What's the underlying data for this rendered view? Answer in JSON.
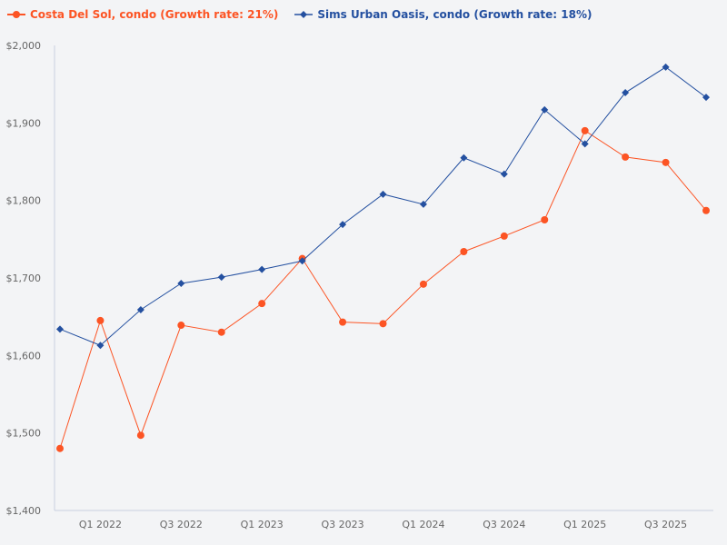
{
  "chart_data": {
    "type": "line",
    "title": "",
    "xlabel": "",
    "ylabel": "",
    "ylim": [
      1400,
      2000
    ],
    "yticks": [
      1400,
      1500,
      1600,
      1700,
      1800,
      1900,
      2000
    ],
    "ytick_labels": [
      "$1,400",
      "$1,500",
      "$1,600",
      "$1,700",
      "$1,800",
      "$1,900",
      "$2,000"
    ],
    "x": [
      "Q4 2021",
      "Q1 2022",
      "Q2 2022",
      "Q3 2022",
      "Q4 2022",
      "Q1 2023",
      "Q2 2023",
      "Q3 2023",
      "Q4 2023",
      "Q1 2024",
      "Q2 2024",
      "Q3 2024",
      "Q4 2024",
      "Q1 2025",
      "Q2 2025",
      "Q3 2025",
      "Q4 2025"
    ],
    "xtick_labels": [
      {
        "i": 1,
        "label": "Q1 2022"
      },
      {
        "i": 3,
        "label": "Q3 2022"
      },
      {
        "i": 5,
        "label": "Q1 2023"
      },
      {
        "i": 7,
        "label": "Q3 2023"
      },
      {
        "i": 9,
        "label": "Q1 2024"
      },
      {
        "i": 11,
        "label": "Q3 2024"
      },
      {
        "i": 13,
        "label": "Q1 2025"
      },
      {
        "i": 15,
        "label": "Q3 2025"
      }
    ],
    "legend_position": "top-left",
    "grid": false,
    "series": [
      {
        "name": "Costa Del Sol, condo (Growth rate: 21%)",
        "color": "#fc5424",
        "marker": "circle",
        "values": [
          1480,
          1645,
          1497,
          1639,
          1630,
          1667,
          1725,
          1643,
          1641,
          1692,
          1734,
          1754,
          1775,
          1890,
          1856,
          1849,
          1787
        ]
      },
      {
        "name": "Sims Urban Oasis, condo (Growth rate: 18%)",
        "color": "#2450a0",
        "marker": "diamond",
        "values": [
          1634,
          1613,
          1659,
          1693,
          1701,
          1711,
          1722,
          1769,
          1808,
          1795,
          1855,
          1834,
          1917,
          1873,
          1939,
          1972,
          1933
        ]
      }
    ]
  }
}
